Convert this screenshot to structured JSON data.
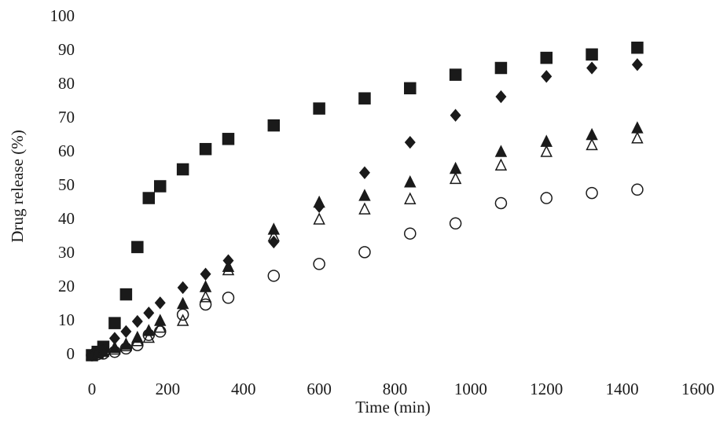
{
  "chart_data": {
    "type": "scatter",
    "xlabel": "Time (min)",
    "ylabel": "Drug release (%)",
    "x": [
      0,
      15,
      30,
      60,
      90,
      120,
      150,
      180,
      240,
      300,
      360,
      480,
      600,
      720,
      840,
      960,
      1080,
      1200,
      1320,
      1440
    ],
    "series": [
      {
        "color": "#1a1a1a",
        "marker": "square",
        "filled": true,
        "values": [
          0,
          1,
          2.5,
          9.5,
          18,
          32,
          46.5,
          50,
          55,
          61,
          64,
          68,
          73,
          76,
          79,
          83,
          85,
          88,
          89,
          91
        ]
      },
      {
        "color": "#1a1a1a",
        "marker": "diamond",
        "filled": true,
        "values": [
          0,
          1,
          2,
          5,
          7,
          10,
          12.5,
          15.5,
          20,
          24,
          28,
          33.5,
          44,
          54,
          63,
          71,
          76.5,
          82.5,
          85,
          86
        ]
      },
      {
        "color": "#1a1a1a",
        "marker": "triangle",
        "filled": true,
        "values": [
          0,
          0.5,
          1,
          2,
          3,
          5,
          7,
          10,
          15,
          20,
          26,
          37,
          45,
          47,
          51,
          55,
          60,
          63,
          65,
          67
        ]
      },
      {
        "color": "#1a1a1a",
        "marker": "triangle",
        "filled": false,
        "values": [
          0,
          0.3,
          0.8,
          1.5,
          2.5,
          4,
          5,
          8,
          10,
          17,
          25,
          35,
          40,
          43,
          46,
          52,
          56,
          60,
          62,
          64
        ]
      },
      {
        "color": "#1a1a1a",
        "marker": "circle",
        "filled": false,
        "values": [
          0,
          0.3,
          0.5,
          1,
          2,
          3,
          6,
          7,
          12,
          15,
          17,
          23.5,
          27,
          30.5,
          36,
          39,
          45,
          46.5,
          48,
          49
        ]
      }
    ],
    "xlim": [
      0,
      1600
    ],
    "xticks": [
      0,
      200,
      400,
      600,
      800,
      1000,
      1200,
      1400,
      1600
    ],
    "ylim": [
      0,
      100
    ],
    "yticks": [
      0,
      10,
      20,
      30,
      40,
      50,
      60,
      70,
      80,
      90,
      100
    ],
    "grid": false
  }
}
